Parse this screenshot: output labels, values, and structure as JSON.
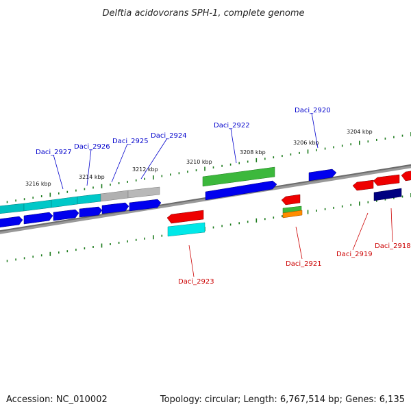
{
  "title": "Delftia acidovorans SPH-1, complete genome",
  "footer": {
    "accession": "Accession: NC_010002",
    "summary": "Topology: circular; Length: 6,767,514 bp; Genes: 6,135"
  },
  "colors": {
    "backbone": "#7a7a7a",
    "tick": "#1a7a1a",
    "forward_label": "#0000cc",
    "reverse_label": "#cc0000"
  },
  "ticks": [
    {
      "label": "3216 kbp"
    },
    {
      "label": "3214 kbp"
    },
    {
      "label": "3212 kbp"
    },
    {
      "label": "3210 kbp"
    },
    {
      "label": "3208 kbp"
    },
    {
      "label": "3206 kbp"
    },
    {
      "label": "3204 kbp"
    }
  ],
  "genes": [
    {
      "name": "Daci_2927",
      "strand": "forward",
      "color": "#0000ee",
      "class_color": "#00c8c8"
    },
    {
      "name": "Daci_2926",
      "strand": "forward",
      "color": "#0000ee",
      "class_color": "#00c8c8"
    },
    {
      "name": "Daci_2925",
      "strand": "forward",
      "color": "#0000ee",
      "class_color": "#b0b0b0"
    },
    {
      "name": "Daci_2924",
      "strand": "forward",
      "color": "#0000ee",
      "class_color": "#b0b0b0"
    },
    {
      "name": "Daci_2922",
      "strand": "forward",
      "color": "#0000ee",
      "class_color": "#3cb83c"
    },
    {
      "name": "Daci_2920",
      "strand": "forward",
      "color": "#0000ee"
    },
    {
      "name": "Daci_2923",
      "strand": "reverse",
      "color": "#ee0000",
      "class_color": "#00e8e8"
    },
    {
      "name": "Daci_2921",
      "strand": "reverse",
      "color": "#ee0000",
      "class_color": "#ff8c00"
    },
    {
      "name": "Daci_2919",
      "strand": "reverse",
      "color": "#ee0000"
    },
    {
      "name": "Daci_2918",
      "strand": "reverse",
      "color": "#ee0000",
      "class_color": "#000080"
    }
  ]
}
